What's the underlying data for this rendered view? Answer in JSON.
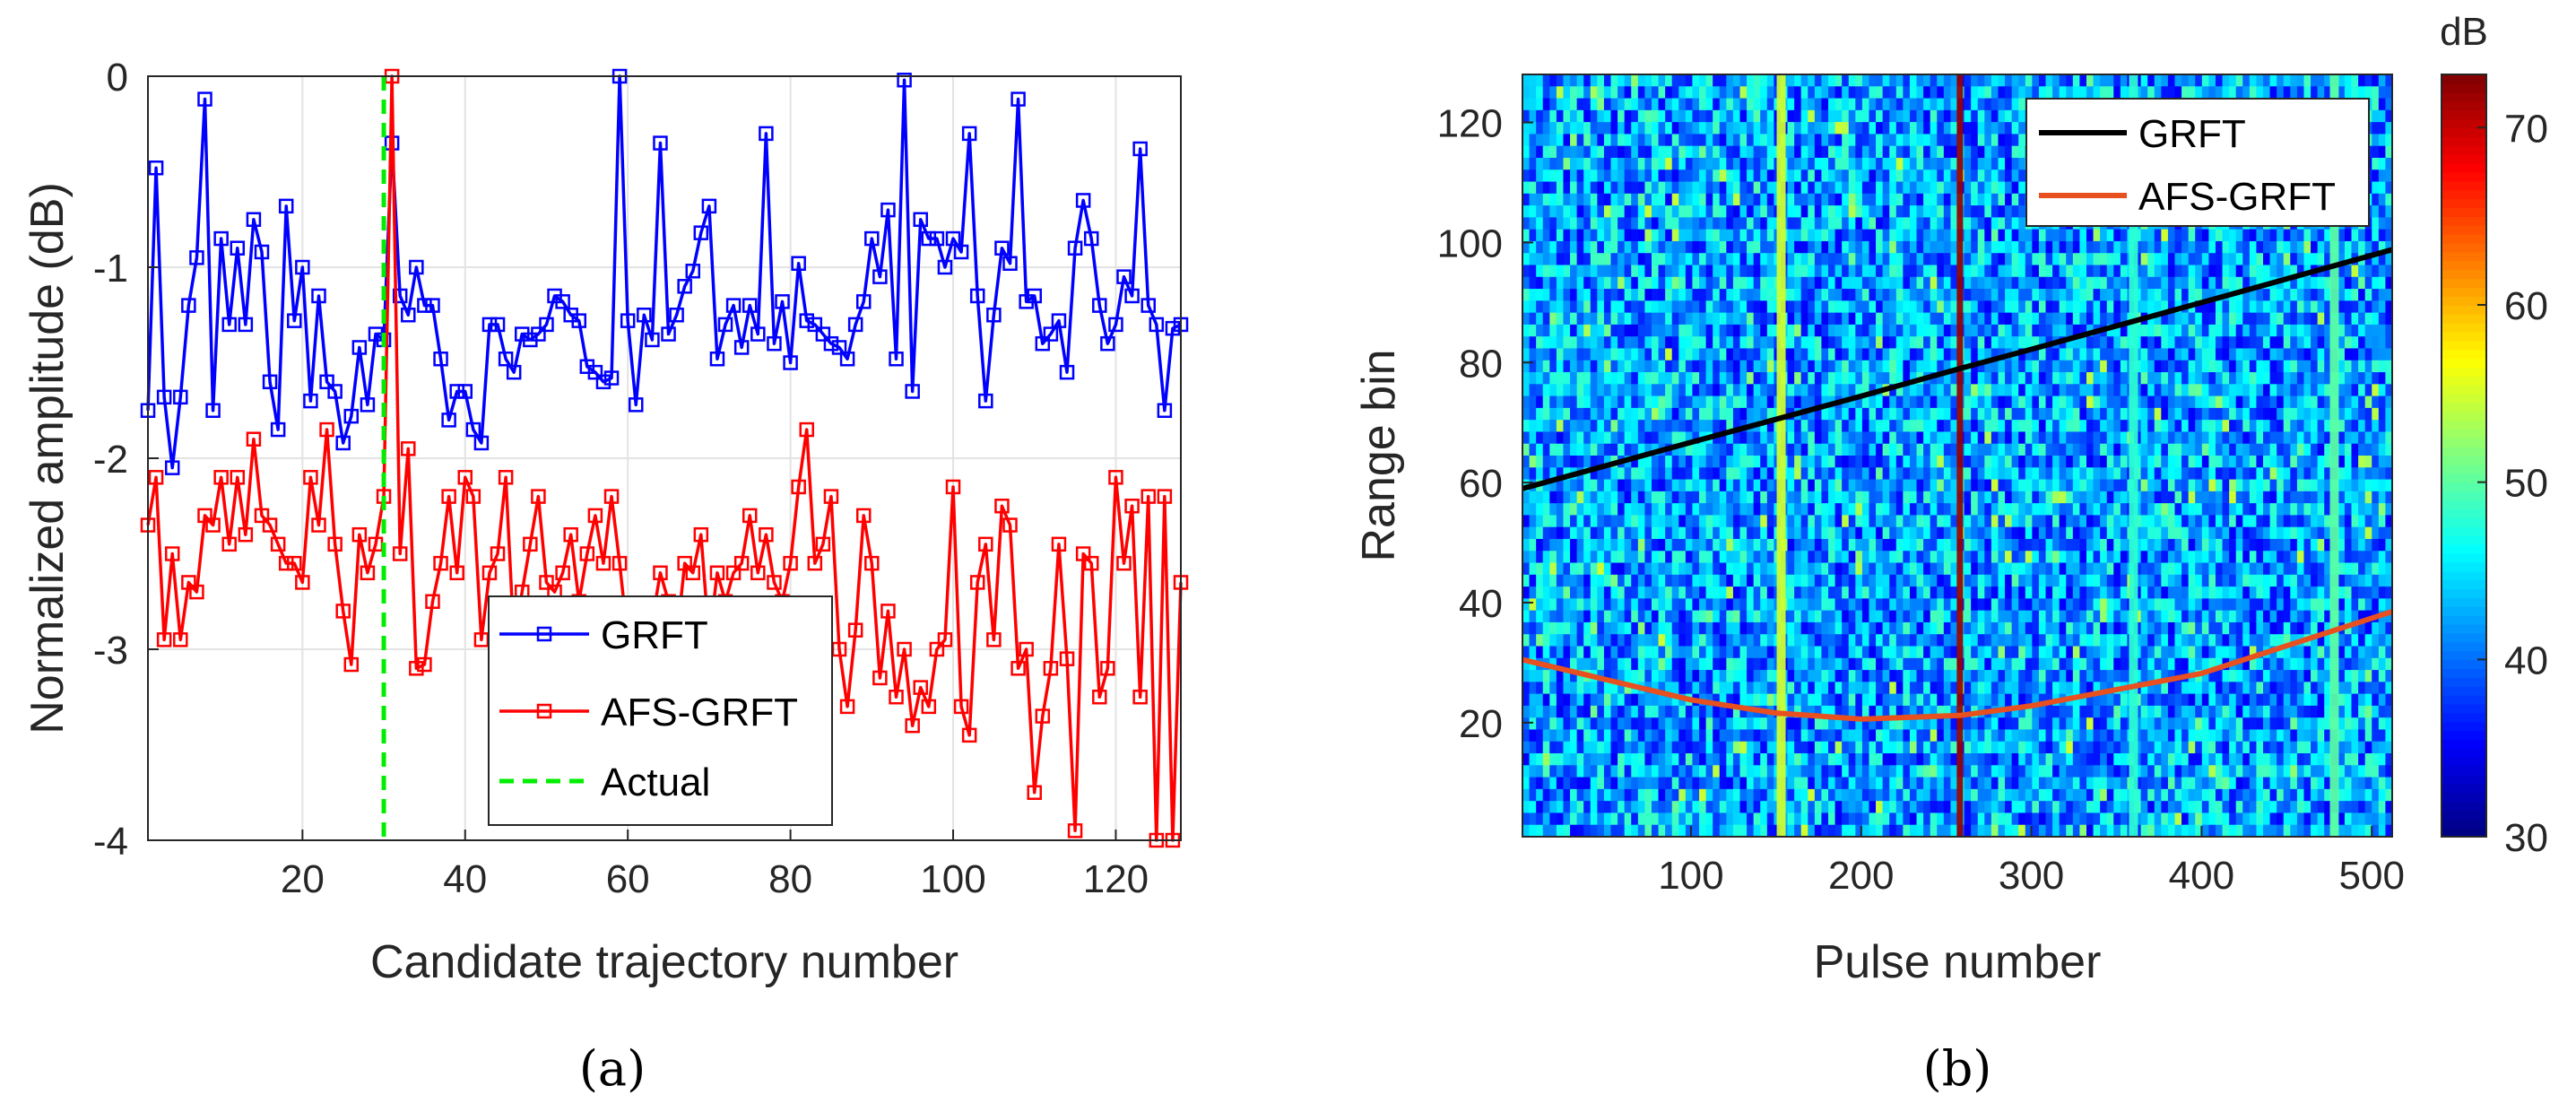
{
  "chart_data": [
    {
      "type": "line",
      "caption": "(a)",
      "xlabel": "Candidate trajectory number",
      "ylabel": "Normalized amplitude (dB)",
      "xlim": [
        1,
        128
      ],
      "ylim": [
        -4,
        0
      ],
      "xticks": [
        20,
        40,
        60,
        80,
        100,
        120
      ],
      "yticks": [
        0,
        -1,
        -2,
        -3,
        -4
      ],
      "grid": true,
      "legend_position": "lower-center",
      "series": [
        {
          "name": "GRFT",
          "color": "#0000ff",
          "marker": "square",
          "x_start": 1,
          "values": [
            -1.75,
            -0.48,
            -1.68,
            -2.05,
            -1.68,
            -1.2,
            -0.95,
            -0.12,
            -1.75,
            -0.85,
            -1.3,
            -0.9,
            -1.3,
            -0.75,
            -0.92,
            -1.6,
            -1.85,
            -0.68,
            -1.28,
            -1.0,
            -1.7,
            -1.15,
            -1.6,
            -1.65,
            -1.92,
            -1.78,
            -1.42,
            -1.72,
            -1.35,
            -1.38,
            -0.35,
            -1.15,
            -1.25,
            -1.0,
            -1.2,
            -1.2,
            -1.48,
            -1.8,
            -1.65,
            -1.65,
            -1.85,
            -1.92,
            -1.3,
            -1.3,
            -1.48,
            -1.55,
            -1.35,
            -1.38,
            -1.35,
            -1.3,
            -1.15,
            -1.18,
            -1.25,
            -1.28,
            -1.52,
            -1.55,
            -1.6,
            -1.58,
            0.0,
            -1.28,
            -1.72,
            -1.25,
            -1.38,
            -0.35,
            -1.35,
            -1.25,
            -1.1,
            -1.02,
            -0.82,
            -0.68,
            -1.48,
            -1.3,
            -1.2,
            -1.42,
            -1.2,
            -1.35,
            -0.3,
            -1.4,
            -1.18,
            -1.5,
            -0.98,
            -1.28,
            -1.3,
            -1.35,
            -1.4,
            -1.42,
            -1.48,
            -1.3,
            -1.18,
            -0.85,
            -1.05,
            -0.7,
            -1.48,
            -0.02,
            -1.65,
            -0.75,
            -0.85,
            -0.85,
            -1.0,
            -0.85,
            -0.92,
            -0.3,
            -1.15,
            -1.7,
            -1.25,
            -0.9,
            -0.98,
            -0.12,
            -1.18,
            -1.15,
            -1.4,
            -1.35,
            -1.28,
            -1.55,
            -0.9,
            -0.65,
            -0.85,
            -1.2,
            -1.4,
            -1.3,
            -1.05,
            -1.15,
            -0.38,
            -1.2,
            -1.3,
            -1.75,
            -1.32,
            -1.3
          ]
        },
        {
          "name": "AFS-GRFT",
          "color": "#ff0000",
          "marker": "square",
          "x_start": 1,
          "values": [
            -2.35,
            -2.1,
            -2.95,
            -2.5,
            -2.95,
            -2.65,
            -2.7,
            -2.3,
            -2.35,
            -2.1,
            -2.45,
            -2.1,
            -2.4,
            -1.9,
            -2.3,
            -2.35,
            -2.45,
            -2.55,
            -2.55,
            -2.65,
            -2.1,
            -2.35,
            -1.85,
            -2.45,
            -2.8,
            -3.08,
            -2.4,
            -2.6,
            -2.45,
            -2.2,
            0.0,
            -2.5,
            -1.95,
            -3.1,
            -3.08,
            -2.75,
            -2.55,
            -2.2,
            -2.6,
            -2.1,
            -2.2,
            -2.95,
            -2.6,
            -2.5,
            -2.1,
            -2.95,
            -2.7,
            -2.45,
            -2.2,
            -2.65,
            -2.7,
            -2.6,
            -2.4,
            -2.75,
            -2.5,
            -2.3,
            -2.55,
            -2.2,
            -2.55,
            -2.95,
            -2.8,
            -2.95,
            -2.85,
            -2.6,
            -2.75,
            -2.95,
            -2.55,
            -2.6,
            -2.4,
            -2.95,
            -2.6,
            -2.75,
            -2.6,
            -2.55,
            -2.3,
            -2.6,
            -2.4,
            -2.65,
            -2.75,
            -2.55,
            -2.15,
            -1.85,
            -2.55,
            -2.45,
            -2.2,
            -3.0,
            -3.3,
            -2.9,
            -2.3,
            -2.55,
            -3.15,
            -2.8,
            -3.25,
            -3.0,
            -3.4,
            -3.2,
            -3.3,
            -3.0,
            -2.95,
            -2.15,
            -3.3,
            -3.45,
            -2.65,
            -2.45,
            -2.95,
            -2.25,
            -2.35,
            -3.1,
            -3.0,
            -3.75,
            -3.35,
            -3.1,
            -2.45,
            -3.05,
            -3.95,
            -2.5,
            -2.55,
            -3.25,
            -3.1,
            -2.1,
            -2.55,
            -2.25,
            -3.25,
            -2.2,
            -4.0,
            -2.2,
            -4.0,
            -2.65
          ]
        },
        {
          "name": "Actual",
          "color": "#00ee00",
          "style": "dashed",
          "x": [
            30,
            30
          ],
          "y": [
            0,
            -4
          ]
        }
      ]
    },
    {
      "type": "heatmap",
      "caption": "(b)",
      "xlabel": "Pulse number",
      "ylabel": "Range bin",
      "xlim": [
        1,
        512
      ],
      "ylim": [
        1,
        128
      ],
      "xticks": [
        100,
        200,
        300,
        400,
        500
      ],
      "yticks": [
        20,
        40,
        60,
        80,
        100,
        120
      ],
      "colorbar": {
        "label": "dB",
        "range": [
          30,
          73
        ],
        "ticks": [
          30,
          40,
          50,
          60,
          70
        ],
        "colormap": "jet"
      },
      "background_level_db": 42,
      "bright_columns": [
        {
          "pulse": 153,
          "level_db": 55
        },
        {
          "pulse": 258,
          "level_db": 72
        },
        {
          "pulse": 360,
          "level_db": 48
        },
        {
          "pulse": 478,
          "level_db": 50
        }
      ],
      "legend_position": "top-right",
      "series": [
        {
          "name": "GRFT",
          "color": "#000000",
          "x": [
            1,
            100,
            200,
            258,
            300,
            400,
            512
          ],
          "y": [
            59,
            66.7,
            74.4,
            79,
            82.2,
            90.0,
            98.8
          ]
        },
        {
          "name": "AFS-GRFT",
          "color": "#e8501f",
          "x": [
            1,
            100,
            150,
            200,
            258,
            300,
            400,
            512
          ],
          "y": [
            30.5,
            23.8,
            21.6,
            20.6,
            21.2,
            22.8,
            28.2,
            38.5
          ]
        }
      ]
    }
  ]
}
